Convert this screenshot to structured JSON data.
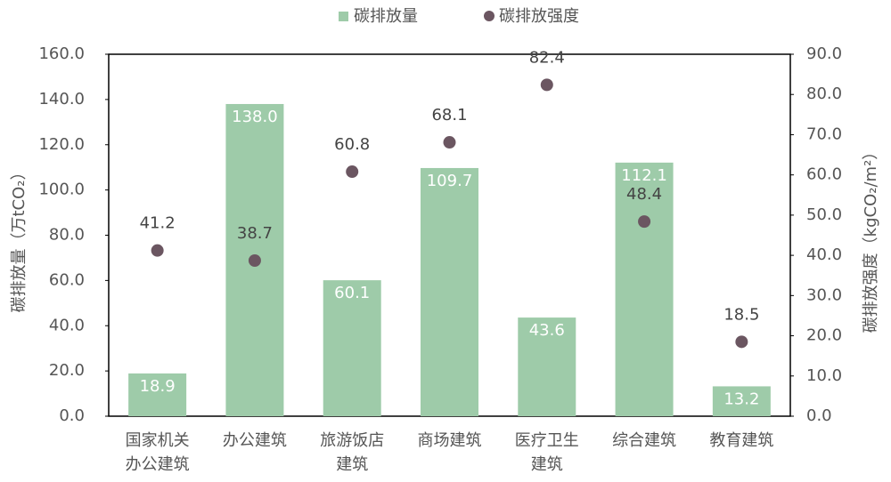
{
  "chart_data": {
    "type": "bar",
    "categories": [
      "国家机关办公建筑",
      "办公建筑",
      "旅游饭店建筑",
      "商场建筑",
      "医疗卫生建筑",
      "综合建筑",
      "教育建筑"
    ],
    "series": [
      {
        "name": "碳排放量",
        "type": "bar",
        "color": "#9ecba9",
        "values": [
          18.9,
          138.0,
          60.1,
          109.7,
          43.6,
          112.1,
          13.2
        ],
        "value_labels": [
          "18.9",
          "138.0",
          "60.1",
          "109.7",
          "43.6",
          "112.1",
          "13.2"
        ]
      },
      {
        "name": "碳排放强度",
        "type": "scatter",
        "axis": "y2",
        "color": "#6b5661",
        "values": [
          41.2,
          38.7,
          60.8,
          68.1,
          82.4,
          48.4,
          18.5
        ]
      }
    ],
    "ylabel": "碳排放量（万tCO₂）",
    "y2label": "碳排放强度（kgCO₂/m²）",
    "ylim": [
      0,
      160
    ],
    "yticks": [
      {
        "value": 0,
        "label": "0.0"
      },
      {
        "value": 20,
        "label": "20.0"
      },
      {
        "value": 40,
        "label": "40.0"
      },
      {
        "value": 60,
        "label": "60.0"
      },
      {
        "value": 80,
        "label": "80.0"
      },
      {
        "value": 100,
        "label": "100.0"
      },
      {
        "value": 120,
        "label": "120.0"
      },
      {
        "value": 140,
        "label": "140.0"
      },
      {
        "value": 160,
        "label": "160.0"
      }
    ],
    "y2lim": [
      0,
      90
    ],
    "y2ticks": [
      {
        "value": 0,
        "label": "0.0"
      },
      {
        "value": 10,
        "label": "10.0"
      },
      {
        "value": 20,
        "label": "20.0"
      },
      {
        "value": 30,
        "label": "30.0"
      },
      {
        "value": 40,
        "label": "40.0"
      },
      {
        "value": 50,
        "label": "50.0"
      },
      {
        "value": 60,
        "label": "60.0"
      },
      {
        "value": 70,
        "label": "70.0"
      },
      {
        "value": 80,
        "label": "80.0"
      },
      {
        "value": 90,
        "label": "90.0"
      }
    ],
    "legend": "top"
  }
}
